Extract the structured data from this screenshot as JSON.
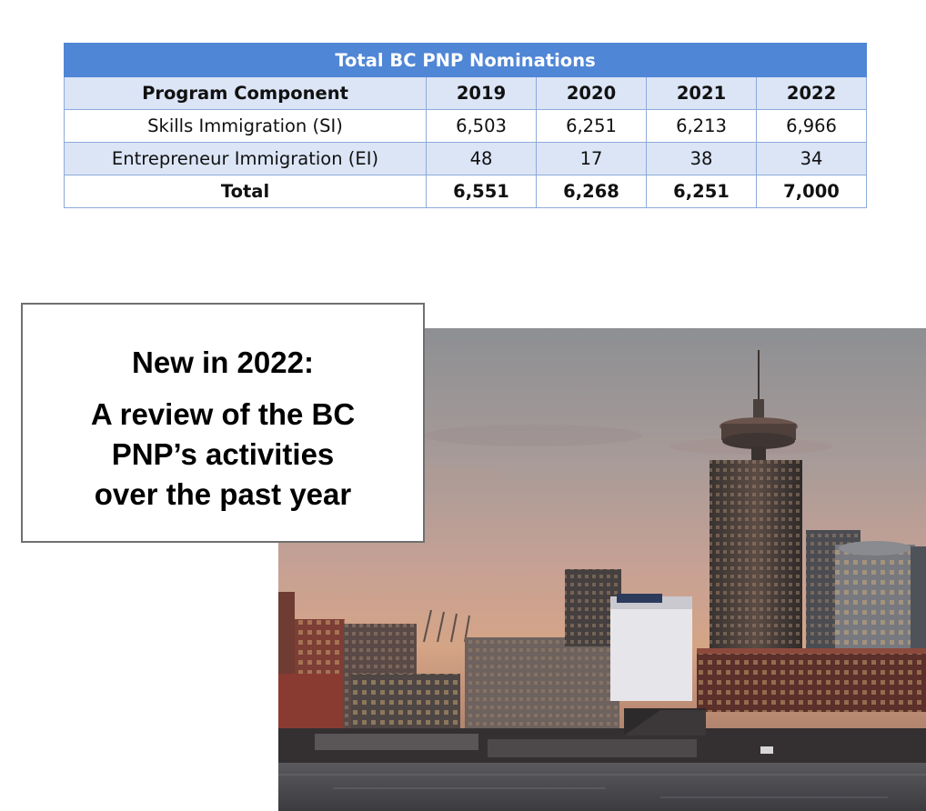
{
  "table": {
    "title": "Total BC PNP Nominations",
    "headers": [
      "Program Component",
      "2019",
      "2020",
      "2021",
      "2022"
    ],
    "rows": [
      [
        "Skills Immigration (SI)",
        "6,503",
        "6,251",
        "6,213",
        "6,966"
      ],
      [
        "Entrepreneur Immigration (EI)",
        "48",
        "17",
        "38",
        "34"
      ],
      [
        "Total",
        "6,551",
        "6,268",
        "6,251",
        "7,000"
      ]
    ]
  },
  "callout": {
    "headline": "New in 2022:",
    "body_lines": [
      "A review of the BC",
      "PNP’s activities",
      "over the past year"
    ]
  }
}
